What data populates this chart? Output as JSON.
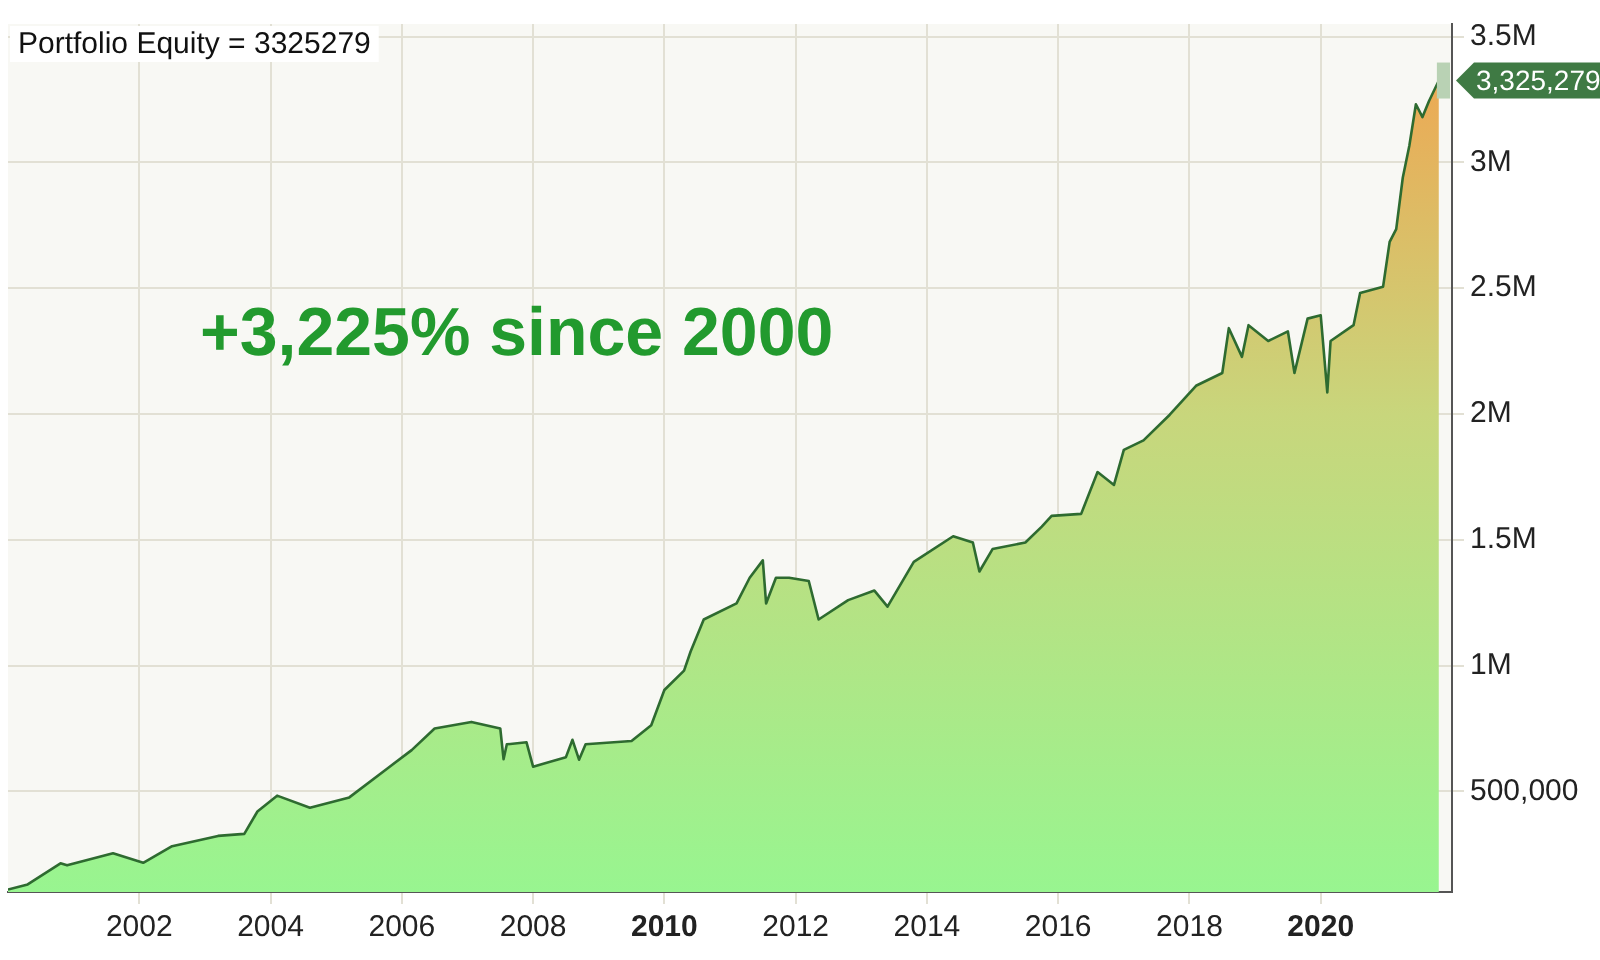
{
  "chart_data": {
    "type": "area",
    "title": "Portfolio Equity = 3325279",
    "annotations": [
      {
        "text": "+3,225% since 2000"
      },
      {
        "text": "3,325,279",
        "x": 2021.8,
        "y": 3325279
      }
    ],
    "xlim": [
      2000,
      2022
    ],
    "xticks": [
      2002,
      2004,
      2006,
      2008,
      2010,
      2012,
      2014,
      2016,
      2018,
      2020
    ],
    "ylim": [
      100000,
      3550000
    ],
    "yticks": [
      {
        "value": 500000,
        "label": "500,000"
      },
      {
        "value": 1000000,
        "label": "1M"
      },
      {
        "value": 1500000,
        "label": "1.5M"
      },
      {
        "value": 2000000,
        "label": "2M"
      },
      {
        "value": 2500000,
        "label": "2.5M"
      },
      {
        "value": 3000000,
        "label": "3M"
      },
      {
        "value": 3500000,
        "label": "3.5M"
      }
    ],
    "grid": true,
    "legend": false,
    "series": [
      {
        "color": "#2e6b30",
        "x": [
          2000.0,
          2000.3,
          2000.8,
          2000.9,
          2001.6,
          2002.06,
          2002.5,
          2003.2,
          2003.6,
          2003.8,
          2004.1,
          2004.6,
          2005.2,
          2005.8,
          2006.15,
          2006.5,
          2007.06,
          2007.5,
          2007.55,
          2007.6,
          2007.9,
          2008.0,
          2008.5,
          2008.6,
          2008.7,
          2008.8,
          2009.5,
          2009.8,
          2010.0,
          2010.3,
          2010.4,
          2010.6,
          2011.1,
          2011.3,
          2011.5,
          2011.55,
          2011.7,
          2011.9,
          2012.2,
          2012.35,
          2012.8,
          2013.2,
          2013.4,
          2013.8,
          2014.4,
          2014.7,
          2014.8,
          2015.0,
          2015.5,
          2015.75,
          2015.9,
          2016.35,
          2016.6,
          2016.85,
          2017.0,
          2017.3,
          2017.7,
          2018.1,
          2018.5,
          2018.6,
          2018.8,
          2018.9,
          2019.2,
          2019.5,
          2019.6,
          2019.8,
          2020.0,
          2020.1,
          2020.15,
          2020.5,
          2020.6,
          2020.95,
          2021.05,
          2021.15,
          2021.25,
          2021.35,
          2021.45,
          2021.55,
          2021.65,
          2021.8
        ],
        "values": [
          110000,
          130000,
          214000,
          206000,
          254000,
          216000,
          282000,
          323000,
          331000,
          420000,
          483000,
          435000,
          476000,
          595000,
          664000,
          750000,
          776000,
          750000,
          628000,
          687000,
          695000,
          598000,
          636000,
          705000,
          626000,
          687000,
          700000,
          763000,
          903000,
          980000,
          1056000,
          1183000,
          1247000,
          1349000,
          1418000,
          1247000,
          1349000,
          1349000,
          1336000,
          1183000,
          1260000,
          1298000,
          1234000,
          1412000,
          1514000,
          1489000,
          1374000,
          1463000,
          1489000,
          1552000,
          1595000,
          1603000,
          1769000,
          1718000,
          1857000,
          1895000,
          1997000,
          2112000,
          2163000,
          2341000,
          2227000,
          2353000,
          2290000,
          2328000,
          2163000,
          2379000,
          2392000,
          2086000,
          2290000,
          2353000,
          2481000,
          2506000,
          2684000,
          2735000,
          2939000,
          3066000,
          3231000,
          3180000,
          3244000,
          3325279
        ]
      }
    ]
  }
}
